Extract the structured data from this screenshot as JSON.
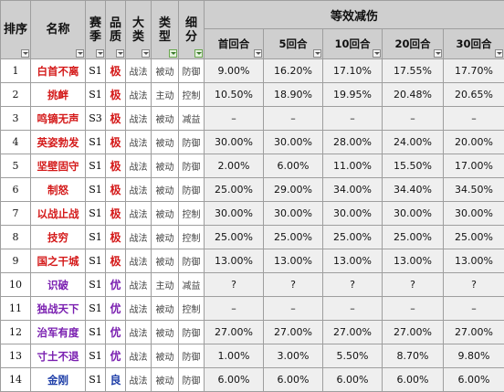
{
  "headers": {
    "rank": "排序",
    "name": "名称",
    "season": "赛季",
    "quality": "品质",
    "category": "大类",
    "type": "类型",
    "subdivision": "细分",
    "group": "等效减伤",
    "rounds": [
      "首回合",
      "5回合",
      "10回合",
      "20回合",
      "30回合"
    ]
  },
  "colors": {
    "header_bg": "#cfcfcf",
    "percent_bg": "#efefef",
    "red": "#d41a1a",
    "purple": "#7a1fb0",
    "blue": "#1f3fa8"
  },
  "rows": [
    {
      "rank": "1",
      "name": "白首不离",
      "name_color": "red",
      "season": "S1",
      "quality": "极",
      "quality_color": "ji",
      "category": "战法",
      "type": "被动",
      "sub": "防御",
      "sub_color": "fang",
      "v": [
        "9.00%",
        "16.20%",
        "17.10%",
        "17.55%",
        "17.70%"
      ]
    },
    {
      "rank": "2",
      "name": "挑衅",
      "name_color": "red",
      "season": "S1",
      "quality": "极",
      "quality_color": "ji",
      "category": "战法",
      "type": "主动",
      "sub": "控制",
      "sub_color": "ctrl",
      "v": [
        "10.50%",
        "18.90%",
        "19.95%",
        "20.48%",
        "20.65%"
      ]
    },
    {
      "rank": "3",
      "name": "鸣镝无声",
      "name_color": "red",
      "season": "S3",
      "quality": "极",
      "quality_color": "ji",
      "category": "战法",
      "type": "被动",
      "sub": "减益",
      "sub_color": "buff",
      "v": [
        "–",
        "–",
        "–",
        "–",
        "–"
      ]
    },
    {
      "rank": "4",
      "name": "英姿勃发",
      "name_color": "red",
      "season": "S1",
      "quality": "极",
      "quality_color": "ji",
      "category": "战法",
      "type": "被动",
      "sub": "防御",
      "sub_color": "fang",
      "v": [
        "30.00%",
        "30.00%",
        "28.00%",
        "24.00%",
        "20.00%"
      ]
    },
    {
      "rank": "5",
      "name": "坚壁固守",
      "name_color": "red",
      "season": "S1",
      "quality": "极",
      "quality_color": "ji",
      "category": "战法",
      "type": "被动",
      "sub": "防御",
      "sub_color": "fang",
      "v": [
        "2.00%",
        "6.00%",
        "11.00%",
        "15.50%",
        "17.00%"
      ]
    },
    {
      "rank": "6",
      "name": "制怒",
      "name_color": "red",
      "season": "S1",
      "quality": "极",
      "quality_color": "ji",
      "category": "战法",
      "type": "被动",
      "sub": "防御",
      "sub_color": "fang",
      "v": [
        "25.00%",
        "29.00%",
        "34.00%",
        "34.40%",
        "34.50%"
      ]
    },
    {
      "rank": "7",
      "name": "以战止战",
      "name_color": "red",
      "season": "S1",
      "quality": "极",
      "quality_color": "ji",
      "category": "战法",
      "type": "被动",
      "sub": "控制",
      "sub_color": "ctrl",
      "v": [
        "30.00%",
        "30.00%",
        "30.00%",
        "30.00%",
        "30.00%"
      ]
    },
    {
      "rank": "8",
      "name": "技穷",
      "name_color": "red",
      "season": "S1",
      "quality": "极",
      "quality_color": "ji",
      "category": "战法",
      "type": "被动",
      "sub": "控制",
      "sub_color": "ctrl",
      "v": [
        "25.00%",
        "25.00%",
        "25.00%",
        "25.00%",
        "25.00%"
      ]
    },
    {
      "rank": "9",
      "name": "国之干城",
      "name_color": "red",
      "season": "S1",
      "quality": "极",
      "quality_color": "ji",
      "category": "战法",
      "type": "被动",
      "sub": "防御",
      "sub_color": "fang",
      "v": [
        "13.00%",
        "13.00%",
        "13.00%",
        "13.00%",
        "13.00%"
      ]
    },
    {
      "rank": "10",
      "name": "识破",
      "name_color": "purple",
      "season": "S1",
      "quality": "优",
      "quality_color": "you",
      "category": "战法",
      "type": "主动",
      "sub": "减益",
      "sub_color": "buff",
      "v": [
        "?",
        "?",
        "?",
        "?",
        "?"
      ]
    },
    {
      "rank": "11",
      "name": "独战天下",
      "name_color": "purple",
      "season": "S1",
      "quality": "优",
      "quality_color": "you",
      "category": "战法",
      "type": "被动",
      "sub": "控制",
      "sub_color": "ctrl",
      "v": [
        "–",
        "–",
        "–",
        "–",
        "–"
      ]
    },
    {
      "rank": "12",
      "name": "治军有度",
      "name_color": "purple",
      "season": "S1",
      "quality": "优",
      "quality_color": "you",
      "category": "战法",
      "type": "被动",
      "sub": "防御",
      "sub_color": "fang",
      "v": [
        "27.00%",
        "27.00%",
        "27.00%",
        "27.00%",
        "27.00%"
      ]
    },
    {
      "rank": "13",
      "name": "寸土不退",
      "name_color": "purple",
      "season": "S1",
      "quality": "优",
      "quality_color": "you",
      "category": "战法",
      "type": "被动",
      "sub": "防御",
      "sub_color": "fang",
      "v": [
        "1.00%",
        "3.00%",
        "5.50%",
        "8.70%",
        "9.80%"
      ]
    },
    {
      "rank": "14",
      "name": "金刚",
      "name_color": "blue",
      "season": "S1",
      "quality": "良",
      "quality_color": "liang",
      "category": "战法",
      "type": "被动",
      "sub": "防御",
      "sub_color": "fang",
      "v": [
        "6.00%",
        "6.00%",
        "6.00%",
        "6.00%",
        "6.00%"
      ]
    }
  ]
}
